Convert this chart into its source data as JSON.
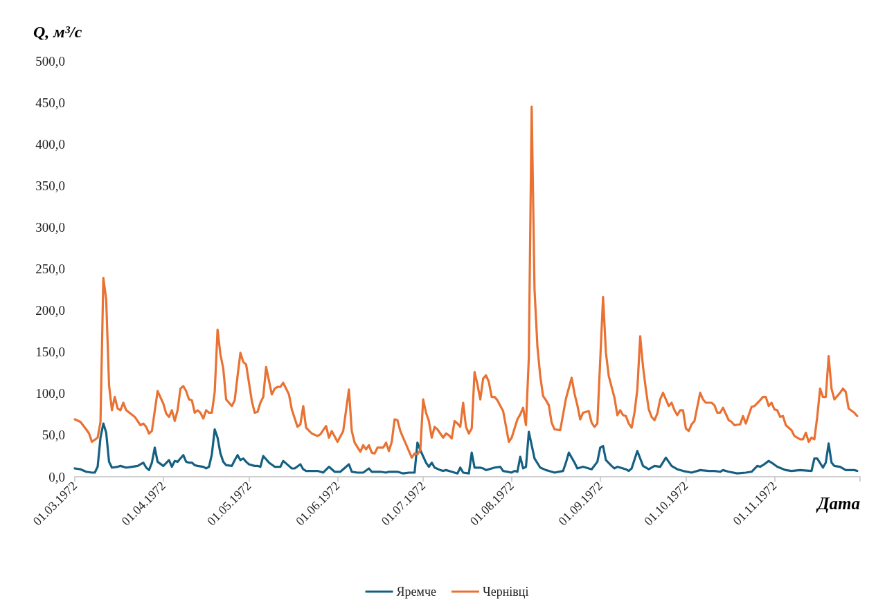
{
  "chart_data": {
    "type": "line",
    "ylabel": "Q, м³/с",
    "xlabel": "Дата",
    "xlim": [
      "1972-03-01",
      "1972-12-01"
    ],
    "xticks": [
      {
        "value": "1972-03-01",
        "label": "01.03.1972"
      },
      {
        "value": "1972-04-01",
        "label": "01.04.1972"
      },
      {
        "value": "1972-05-01",
        "label": "01.05.1972"
      },
      {
        "value": "1972-06-01",
        "label": "01.06.1972"
      },
      {
        "value": "1972-07-01",
        "label": "01.07.1972"
      },
      {
        "value": "1972-08-01",
        "label": "01.08.1972"
      },
      {
        "value": "1972-09-01",
        "label": "01.09.1972"
      },
      {
        "value": "1972-10-01",
        "label": "01.10.1972"
      },
      {
        "value": "1972-11-01",
        "label": "01.11.1972"
      },
      {
        "value": "1972-12-01",
        "label": null
      }
    ],
    "ylim": [
      0,
      500
    ],
    "yticks": [
      {
        "value": 0,
        "label": "0,0"
      },
      {
        "value": 50,
        "label": "50,0"
      },
      {
        "value": 100,
        "label": "100,0"
      },
      {
        "value": 150,
        "label": "150,0"
      },
      {
        "value": 200,
        "label": "200,0"
      },
      {
        "value": 250,
        "label": "250,0"
      },
      {
        "value": 300,
        "label": "300,0"
      },
      {
        "value": 350,
        "label": "350,0"
      },
      {
        "value": 400,
        "label": "400,0"
      },
      {
        "value": 450,
        "label": "450,0"
      },
      {
        "value": 500,
        "label": "500,0"
      }
    ],
    "grid": false,
    "legend": "bottom",
    "marker": "none",
    "line_style": "solid",
    "series": [
      {
        "name": "Яремче",
        "color": "#156082",
        "x": [
          "1972-03-01",
          "1972-03-03",
          "1972-03-05",
          "1972-03-07",
          "1972-03-08",
          "1972-03-09",
          "1972-03-10",
          "1972-03-11",
          "1972-03-12",
          "1972-03-13",
          "1972-03-14",
          "1972-03-16",
          "1972-03-17",
          "1972-03-19",
          "1972-03-21",
          "1972-03-23",
          "1972-03-25",
          "1972-03-26",
          "1972-03-27",
          "1972-03-28",
          "1972-03-29",
          "1972-03-30",
          "1972-04-01",
          "1972-04-03",
          "1972-04-04",
          "1972-04-05",
          "1972-04-06",
          "1972-04-07",
          "1972-04-08",
          "1972-04-09",
          "1972-04-10",
          "1972-04-11",
          "1972-04-12",
          "1972-04-13",
          "1972-04-15",
          "1972-04-16",
          "1972-04-17",
          "1972-04-18",
          "1972-04-19",
          "1972-04-20",
          "1972-04-21",
          "1972-04-22",
          "1972-04-23",
          "1972-04-25",
          "1972-04-26",
          "1972-04-27",
          "1972-04-28",
          "1972-04-29",
          "1972-04-30",
          "1972-05-01",
          "1972-05-03",
          "1972-05-04",
          "1972-05-05",
          "1972-05-06",
          "1972-05-08",
          "1972-05-10",
          "1972-05-12",
          "1972-05-13",
          "1972-05-15",
          "1972-05-16",
          "1972-05-17",
          "1972-05-19",
          "1972-05-20",
          "1972-05-21",
          "1972-05-23",
          "1972-05-25",
          "1972-05-27",
          "1972-05-29",
          "1972-05-31",
          "1972-06-02",
          "1972-06-05",
          "1972-06-06",
          "1972-06-08",
          "1972-06-10",
          "1972-06-12",
          "1972-06-13",
          "1972-06-16",
          "1972-06-18",
          "1972-06-19",
          "1972-06-22",
          "1972-06-24",
          "1972-06-26",
          "1972-06-28",
          "1972-06-29",
          "1972-06-30",
          "1972-07-02",
          "1972-07-03",
          "1972-07-04",
          "1972-07-05",
          "1972-07-07",
          "1972-07-08",
          "1972-07-09",
          "1972-07-11",
          "1972-07-13",
          "1972-07-14",
          "1972-07-15",
          "1972-07-17",
          "1972-07-18",
          "1972-07-19",
          "1972-07-21",
          "1972-07-22",
          "1972-07-23",
          "1972-07-25",
          "1972-07-26",
          "1972-07-28",
          "1972-07-29",
          "1972-08-01",
          "1972-08-02",
          "1972-08-03",
          "1972-08-04",
          "1972-08-05",
          "1972-08-06",
          "1972-08-07",
          "1972-08-08",
          "1972-08-09",
          "1972-08-11",
          "1972-08-13",
          "1972-08-14",
          "1972-08-16",
          "1972-08-19",
          "1972-08-20",
          "1972-08-21",
          "1972-08-23",
          "1972-08-24",
          "1972-08-26",
          "1972-08-28",
          "1972-08-29",
          "1972-08-31",
          "1972-09-01",
          "1972-09-02",
          "1972-09-03",
          "1972-09-05",
          "1972-09-06",
          "1972-09-07",
          "1972-09-10",
          "1972-09-11",
          "1972-09-12",
          "1972-09-14",
          "1972-09-16",
          "1972-09-18",
          "1972-09-20",
          "1972-09-22",
          "1972-09-24",
          "1972-09-26",
          "1972-09-28",
          "1972-09-30",
          "1972-10-03",
          "1972-10-06",
          "1972-10-09",
          "1972-10-11",
          "1972-10-13",
          "1972-10-14",
          "1972-10-16",
          "1972-10-19",
          "1972-10-22",
          "1972-10-24",
          "1972-10-26",
          "1972-10-27",
          "1972-10-28",
          "1972-10-30",
          "1972-10-31",
          "1972-11-02",
          "1972-11-05",
          "1972-11-07",
          "1972-11-10",
          "1972-11-14",
          "1972-11-15",
          "1972-11-16",
          "1972-11-18",
          "1972-11-19",
          "1972-11-20",
          "1972-11-21",
          "1972-11-22",
          "1972-11-24",
          "1972-11-26",
          "1972-11-29",
          "1972-11-30"
        ],
        "values": [
          10,
          9,
          6,
          5,
          5,
          12,
          47,
          64,
          53,
          18,
          11,
          12,
          13,
          11,
          12,
          13,
          17,
          11,
          8,
          17,
          35,
          18,
          13,
          20,
          12,
          19,
          18,
          22,
          26,
          18,
          17,
          17,
          14,
          13,
          12,
          10,
          12,
          27,
          57,
          47,
          28,
          18,
          14,
          13,
          20,
          26,
          20,
          22,
          18,
          15,
          13,
          13,
          12,
          25,
          17,
          12,
          12,
          19,
          13,
          10,
          10,
          15,
          9,
          7,
          7,
          7,
          5,
          12,
          6,
          6,
          15,
          6,
          5,
          5,
          10,
          6,
          6,
          5,
          6,
          6,
          4,
          5,
          5,
          41,
          32,
          17,
          12,
          17,
          11,
          8,
          7,
          8,
          6,
          4,
          11,
          5,
          4,
          29,
          11,
          11,
          10,
          8,
          10,
          11,
          12,
          7,
          5,
          7,
          6,
          24,
          10,
          12,
          54,
          38,
          22,
          11,
          8,
          7,
          5,
          7,
          17,
          29,
          17,
          10,
          12,
          10,
          9,
          18,
          35,
          37,
          20,
          13,
          10,
          12,
          9,
          7,
          10,
          31,
          13,
          9,
          13,
          12,
          23,
          13,
          9,
          7,
          5,
          8,
          7,
          7,
          6,
          8,
          6,
          4,
          5,
          6,
          13,
          12,
          14,
          19,
          17,
          12,
          8,
          7,
          8,
          7,
          22,
          22,
          11,
          17,
          40,
          17,
          13,
          12,
          8,
          8,
          7
        ]
      },
      {
        "name": "Чернівці",
        "color": "#e97132",
        "x": [
          "1972-03-01",
          "1972-03-03",
          "1972-03-05",
          "1972-03-06",
          "1972-03-07",
          "1972-03-09",
          "1972-03-10",
          "1972-03-11",
          "1972-03-12",
          "1972-03-13",
          "1972-03-14",
          "1972-03-15",
          "1972-03-16",
          "1972-03-17",
          "1972-03-18",
          "1972-03-19",
          "1972-03-22",
          "1972-03-24",
          "1972-03-25",
          "1972-03-26",
          "1972-03-27",
          "1972-03-28",
          "1972-03-30",
          "1972-04-01",
          "1972-04-02",
          "1972-04-03",
          "1972-04-04",
          "1972-04-05",
          "1972-04-06",
          "1972-04-07",
          "1972-04-08",
          "1972-04-09",
          "1972-04-10",
          "1972-04-11",
          "1972-04-12",
          "1972-04-13",
          "1972-04-14",
          "1972-04-15",
          "1972-04-16",
          "1972-04-17",
          "1972-04-18",
          "1972-04-19",
          "1972-04-20",
          "1972-04-21",
          "1972-04-22",
          "1972-04-23",
          "1972-04-25",
          "1972-04-26",
          "1972-04-27",
          "1972-04-28",
          "1972-04-29",
          "1972-04-30",
          "1972-05-02",
          "1972-05-03",
          "1972-05-04",
          "1972-05-05",
          "1972-05-06",
          "1972-05-07",
          "1972-05-09",
          "1972-05-10",
          "1972-05-11",
          "1972-05-12",
          "1972-05-13",
          "1972-05-15",
          "1972-05-16",
          "1972-05-18",
          "1972-05-19",
          "1972-05-20",
          "1972-05-21",
          "1972-05-23",
          "1972-05-25",
          "1972-05-26",
          "1972-05-28",
          "1972-05-29",
          "1972-05-30",
          "1972-06-01",
          "1972-06-03",
          "1972-06-05",
          "1972-06-06",
          "1972-06-07",
          "1972-06-09",
          "1972-06-10",
          "1972-06-11",
          "1972-06-12",
          "1972-06-13",
          "1972-06-14",
          "1972-06-15",
          "1972-06-17",
          "1972-06-18",
          "1972-06-19",
          "1972-06-20",
          "1972-06-21",
          "1972-06-22",
          "1972-06-23",
          "1972-06-24",
          "1972-06-25",
          "1972-06-27",
          "1972-06-28",
          "1972-06-29",
          "1972-06-30",
          "1972-07-01",
          "1972-07-02",
          "1972-07-03",
          "1972-07-04",
          "1972-07-05",
          "1972-07-06",
          "1972-07-08",
          "1972-07-09",
          "1972-07-10",
          "1972-07-11",
          "1972-07-12",
          "1972-07-13",
          "1972-07-14",
          "1972-07-15",
          "1972-07-16",
          "1972-07-17",
          "1972-07-18",
          "1972-07-19",
          "1972-07-20",
          "1972-07-21",
          "1972-07-22",
          "1972-07-23",
          "1972-07-24",
          "1972-07-25",
          "1972-07-26",
          "1972-07-27",
          "1972-07-29",
          "1972-07-31",
          "1972-08-01",
          "1972-08-03",
          "1972-08-04",
          "1972-08-05",
          "1972-08-06",
          "1972-08-07",
          "1972-08-08",
          "1972-08-09",
          "1972-08-10",
          "1972-08-11",
          "1972-08-12",
          "1972-08-13",
          "1972-08-14",
          "1972-08-15",
          "1972-08-16",
          "1972-08-18",
          "1972-08-20",
          "1972-08-22",
          "1972-08-23",
          "1972-08-24",
          "1972-08-25",
          "1972-08-26",
          "1972-08-28",
          "1972-08-29",
          "1972-08-30",
          "1972-08-31",
          "1972-09-02",
          "1972-09-03",
          "1972-09-04",
          "1972-09-06",
          "1972-09-07",
          "1972-09-08",
          "1972-09-09",
          "1972-09-10",
          "1972-09-11",
          "1972-09-12",
          "1972-09-13",
          "1972-09-14",
          "1972-09-15",
          "1972-09-16",
          "1972-09-17",
          "1972-09-18",
          "1972-09-19",
          "1972-09-20",
          "1972-09-21",
          "1972-09-22",
          "1972-09-23",
          "1972-09-24",
          "1972-09-25",
          "1972-09-26",
          "1972-09-27",
          "1972-09-28",
          "1972-09-29",
          "1972-09-30",
          "1972-10-01",
          "1972-10-02",
          "1972-10-03",
          "1972-10-04",
          "1972-10-06",
          "1972-10-07",
          "1972-10-08",
          "1972-10-10",
          "1972-10-11",
          "1972-10-12",
          "1972-10-13",
          "1972-10-14",
          "1972-10-16",
          "1972-10-17",
          "1972-10-18",
          "1972-10-20",
          "1972-10-21",
          "1972-10-22",
          "1972-10-24",
          "1972-10-25",
          "1972-10-27",
          "1972-10-28",
          "1972-10-29",
          "1972-10-30",
          "1972-10-31",
          "1972-11-01",
          "1972-11-02",
          "1972-11-03",
          "1972-11-04",
          "1972-11-05",
          "1972-11-07",
          "1972-11-08",
          "1972-11-10",
          "1972-11-11",
          "1972-11-12",
          "1972-11-13",
          "1972-11-14",
          "1972-11-15",
          "1972-11-16",
          "1972-11-17",
          "1972-11-18",
          "1972-11-19",
          "1972-11-20",
          "1972-11-21",
          "1972-11-22",
          "1972-11-24",
          "1972-11-25",
          "1972-11-26",
          "1972-11-27",
          "1972-11-29",
          "1972-11-30"
        ],
        "values": [
          69,
          66,
          57,
          52,
          42,
          47,
          66,
          239,
          213,
          110,
          80,
          96,
          82,
          80,
          89,
          80,
          72,
          62,
          64,
          60,
          52,
          55,
          103,
          88,
          76,
          72,
          80,
          67,
          80,
          106,
          109,
          103,
          93,
          92,
          77,
          80,
          77,
          70,
          80,
          77,
          77,
          102,
          177,
          147,
          130,
          93,
          85,
          92,
          121,
          149,
          138,
          135,
          91,
          77,
          78,
          89,
          96,
          132,
          99,
          106,
          108,
          108,
          113,
          99,
          81,
          60,
          63,
          85,
          59,
          52,
          49,
          51,
          61,
          47,
          55,
          42,
          55,
          105,
          55,
          41,
          30,
          38,
          33,
          38,
          29,
          28,
          35,
          35,
          41,
          31,
          42,
          69,
          68,
          55,
          47,
          39,
          23,
          28,
          27,
          32,
          93,
          77,
          67,
          47,
          60,
          57,
          47,
          52,
          50,
          46,
          67,
          64,
          60,
          89,
          60,
          52,
          58,
          126,
          111,
          93,
          118,
          122,
          114,
          96,
          96,
          92,
          79,
          42,
          47,
          69,
          75,
          83,
          62,
          143,
          445,
          225,
          157,
          121,
          97,
          92,
          86,
          65,
          57,
          56,
          94,
          119,
          100,
          86,
          69,
          77,
          79,
          65,
          60,
          64,
          216,
          149,
          121,
          95,
          74,
          80,
          74,
          73,
          64,
          59,
          77,
          105,
          169,
          132,
          105,
          81,
          72,
          68,
          76,
          93,
          101,
          93,
          85,
          89,
          80,
          74,
          80,
          80,
          58,
          55,
          63,
          67,
          101,
          93,
          89,
          89,
          86,
          77,
          77,
          83,
          68,
          66,
          62,
          63,
          73,
          64,
          84,
          85,
          92,
          96,
          96,
          85,
          89,
          81,
          80,
          72,
          73,
          62,
          56,
          49,
          45,
          45,
          53,
          42,
          47,
          45,
          72,
          106,
          96,
          96,
          145,
          106,
          93,
          101,
          106,
          102,
          82,
          77,
          73
        ]
      }
    ]
  }
}
